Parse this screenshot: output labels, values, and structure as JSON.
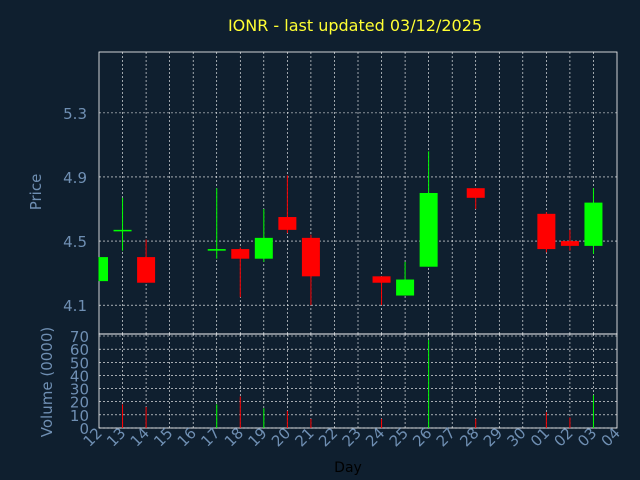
{
  "colors": {
    "background": "#0f1f2f",
    "title": "#ffff33",
    "axis_text": "#6f8fb3",
    "grid": "#ffffff",
    "up": "#00ff00",
    "down": "#ff0000"
  },
  "chart_data": [
    {
      "type": "candlestick",
      "title": "IONR - last updated 03/12/2025",
      "ylabel": "Price",
      "ylim": [
        3.92,
        5.68
      ],
      "yticks": [
        "4.1",
        "4.5",
        "4.9",
        "5.3"
      ],
      "grid": true,
      "categories": [
        "12",
        "13",
        "14",
        "15",
        "16",
        "17",
        "18",
        "19",
        "20",
        "21",
        "22",
        "23",
        "24",
        "25",
        "26",
        "27",
        "28",
        "29",
        "30",
        "01",
        "02",
        "03",
        "04"
      ],
      "candles": [
        {
          "x": "12",
          "open": 4.25,
          "high": 4.4,
          "low": 4.25,
          "close": 4.4
        },
        {
          "x": "13",
          "open": 4.57,
          "high": 4.77,
          "low": 4.44,
          "close": 4.57
        },
        {
          "x": "14",
          "open": 4.4,
          "high": 4.51,
          "low": 4.24,
          "close": 4.24
        },
        {
          "x": "17",
          "open": 4.44,
          "high": 4.83,
          "low": 4.39,
          "close": 4.45
        },
        {
          "x": "18",
          "open": 4.45,
          "high": 4.46,
          "low": 4.15,
          "close": 4.39
        },
        {
          "x": "19",
          "open": 4.39,
          "high": 4.7,
          "low": 4.37,
          "close": 4.52
        },
        {
          "x": "20",
          "open": 4.65,
          "high": 4.91,
          "low": 4.55,
          "close": 4.57
        },
        {
          "x": "21",
          "open": 4.52,
          "high": 4.54,
          "low": 4.1,
          "close": 4.28
        },
        {
          "x": "24",
          "open": 4.28,
          "high": 4.28,
          "low": 4.1,
          "close": 4.24
        },
        {
          "x": "25",
          "open": 4.16,
          "high": 4.37,
          "low": 4.16,
          "close": 4.26
        },
        {
          "x": "26",
          "open": 4.34,
          "high": 5.06,
          "low": 4.34,
          "close": 4.8
        },
        {
          "x": "28",
          "open": 4.83,
          "high": 4.83,
          "low": 4.7,
          "close": 4.77
        },
        {
          "x": "01",
          "open": 4.67,
          "high": 4.68,
          "low": 4.43,
          "close": 4.45
        },
        {
          "x": "02",
          "open": 4.5,
          "high": 4.57,
          "low": 4.44,
          "close": 4.47
        },
        {
          "x": "03",
          "open": 4.47,
          "high": 4.83,
          "low": 4.42,
          "close": 4.74
        }
      ]
    },
    {
      "type": "bar",
      "ylabel": "Volume (0000)",
      "xlabel": "Day",
      "ylim": [
        0,
        70
      ],
      "yticks": [
        "0",
        "10",
        "20",
        "30",
        "40",
        "50",
        "60",
        "70"
      ],
      "grid": true,
      "categories": [
        "12",
        "13",
        "14",
        "15",
        "16",
        "17",
        "18",
        "19",
        "20",
        "21",
        "22",
        "23",
        "24",
        "25",
        "26",
        "27",
        "28",
        "29",
        "30",
        "01",
        "02",
        "03",
        "04"
      ],
      "bars": [
        {
          "x": "13",
          "value": 18,
          "color": "down"
        },
        {
          "x": "14",
          "value": 16,
          "color": "down"
        },
        {
          "x": "17",
          "value": 18,
          "color": "up"
        },
        {
          "x": "18",
          "value": 24,
          "color": "down"
        },
        {
          "x": "19",
          "value": 15,
          "color": "up"
        },
        {
          "x": "20",
          "value": 13,
          "color": "down"
        },
        {
          "x": "21",
          "value": 7,
          "color": "down"
        },
        {
          "x": "24",
          "value": 7,
          "color": "down"
        },
        {
          "x": "26",
          "value": 67,
          "color": "up"
        },
        {
          "x": "28",
          "value": 7,
          "color": "down"
        },
        {
          "x": "01",
          "value": 12,
          "color": "down"
        },
        {
          "x": "02",
          "value": 8,
          "color": "down"
        },
        {
          "x": "03",
          "value": 25,
          "color": "up"
        }
      ]
    }
  ]
}
